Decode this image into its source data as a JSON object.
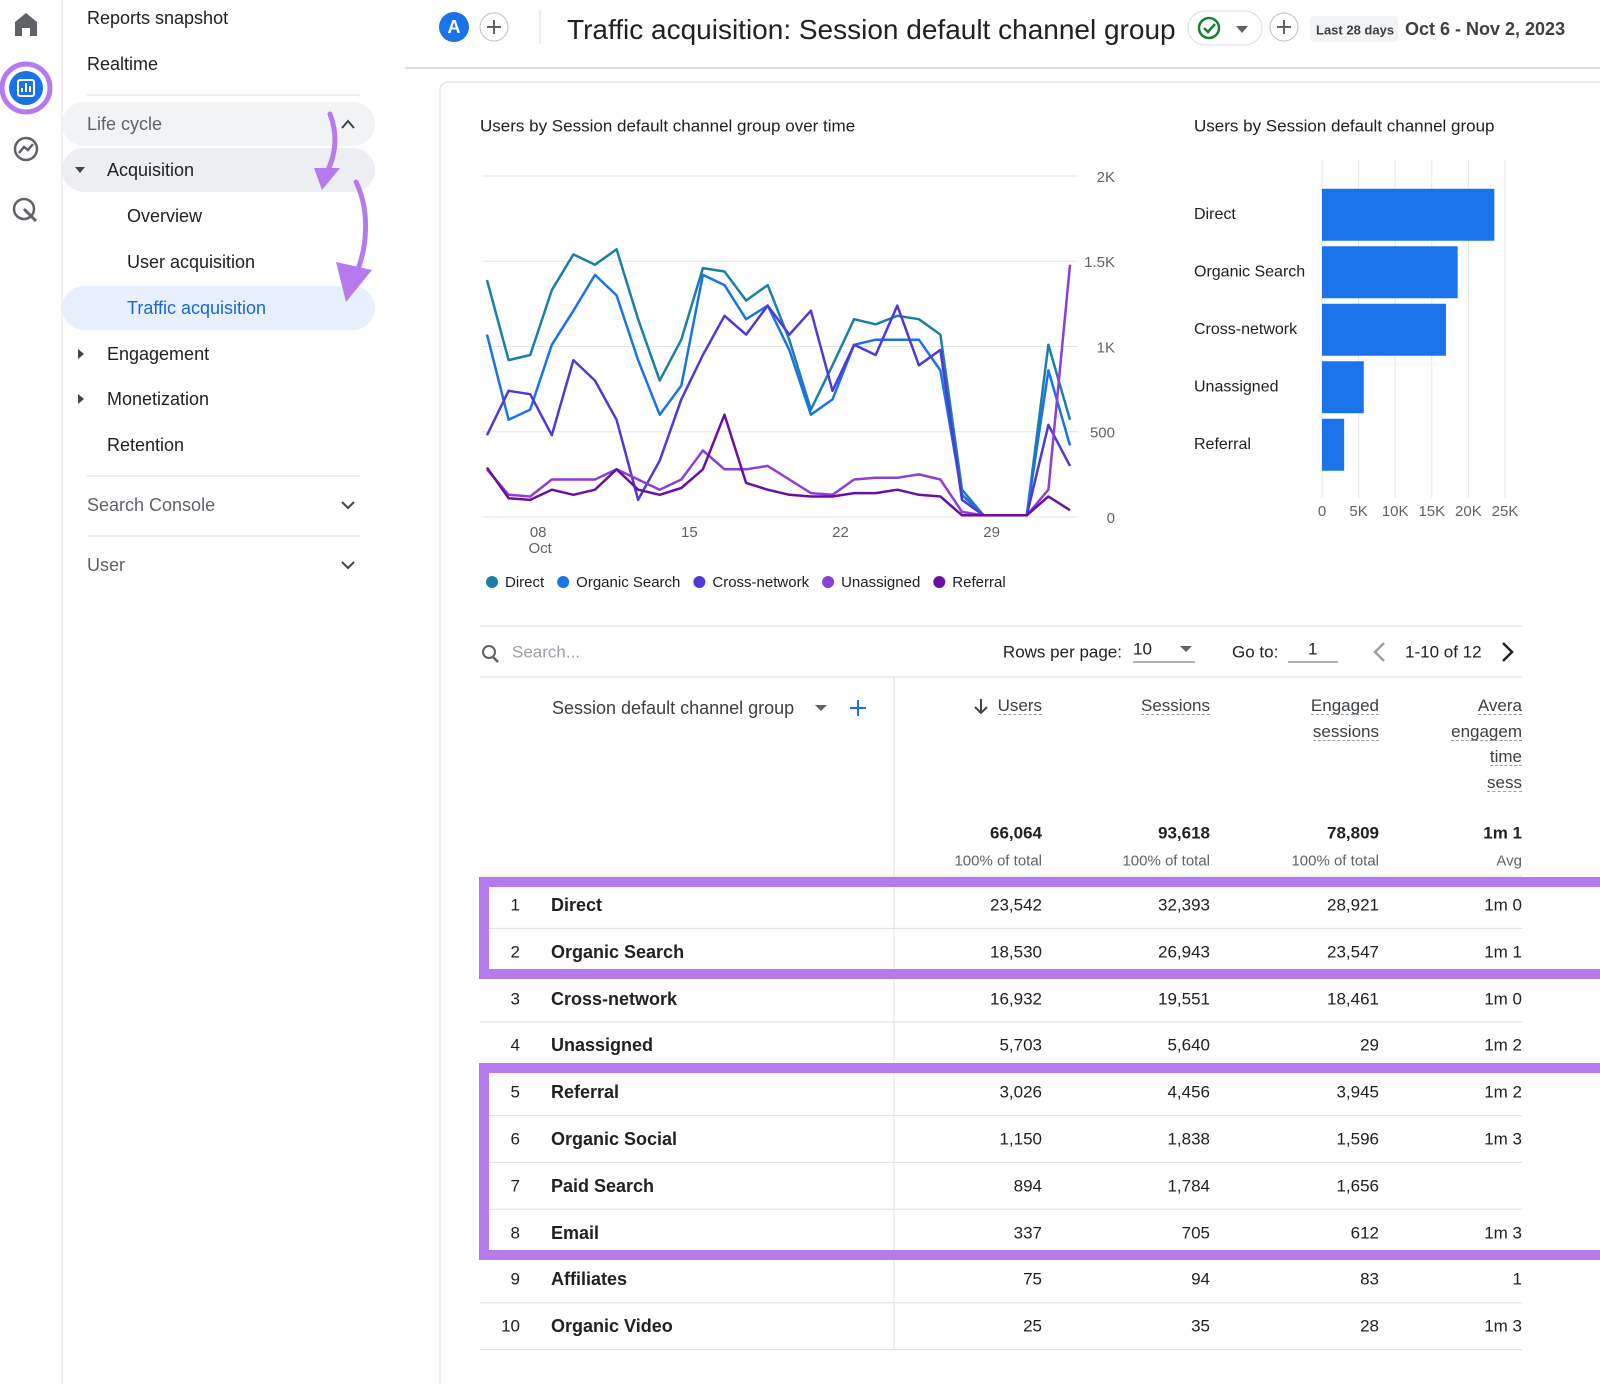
{
  "sidebar": {
    "items": [
      "Reports snapshot",
      "Realtime",
      "Life cycle",
      "Acquisition",
      "Overview",
      "User acquisition",
      "Traffic acquisition",
      "Engagement",
      "Monetization",
      "Retention",
      "Search Console",
      "User"
    ]
  },
  "header": {
    "avatar": "A",
    "title": "Traffic acquisition: Session default channel group",
    "date_range_label": "Last 28 days",
    "date_range": "Oct 6 - Nov 2, 2023"
  },
  "chart_data": [
    {
      "type": "line",
      "title": "Users by Session default channel group over time",
      "categories": [
        null,
        null,
        "08",
        null,
        null,
        null,
        null,
        null,
        null,
        "15",
        null,
        null,
        null,
        null,
        null,
        null,
        "22",
        null,
        null,
        null,
        null,
        null,
        null,
        "29",
        null,
        null,
        null,
        null
      ],
      "x_sublabel": "Oct",
      "ylim": [
        0,
        2000
      ],
      "yticks": [
        0,
        500,
        {
          "value": 1000,
          "label": "1K"
        },
        {
          "value": 1500,
          "label": "1.5K"
        },
        {
          "value": 2000,
          "label": "2K"
        }
      ],
      "grid": true,
      "series": [
        {
          "name": "Direct",
          "color": "#1b7fa6",
          "values": [
            1390,
            920,
            950,
            1330,
            1540,
            1480,
            1570,
            1160,
            800,
            1040,
            1460,
            1440,
            1270,
            1360,
            1040,
            630,
            890,
            1160,
            1130,
            1180,
            1160,
            1070,
            160,
            10,
            10,
            10,
            1010,
            570
          ]
        },
        {
          "name": "Organic Search",
          "color": "#1a73e8",
          "values": [
            1070,
            570,
            630,
            1010,
            1210,
            1420,
            1300,
            920,
            600,
            770,
            1420,
            1360,
            1160,
            1240,
            980,
            600,
            690,
            1010,
            1040,
            1040,
            1040,
            860,
            130,
            10,
            10,
            10,
            860,
            420
          ]
        },
        {
          "name": "Cross-network",
          "color": "#5039d6",
          "values": [
            480,
            740,
            720,
            480,
            920,
            800,
            570,
            100,
            330,
            690,
            950,
            1180,
            1070,
            1240,
            1070,
            1210,
            740,
            1010,
            950,
            1240,
            890,
            980,
            100,
            10,
            10,
            10,
            540,
            300
          ]
        },
        {
          "name": "Unassigned",
          "color": "#8e3ed8",
          "values": [
            280,
            130,
            120,
            220,
            220,
            220,
            280,
            220,
            160,
            220,
            390,
            280,
            280,
            300,
            220,
            140,
            130,
            220,
            230,
            230,
            250,
            220,
            30,
            10,
            10,
            10,
            160,
            1480
          ]
        },
        {
          "name": "Referral",
          "color": "#6b0fa0",
          "values": [
            290,
            110,
            100,
            160,
            130,
            160,
            280,
            160,
            130,
            170,
            280,
            600,
            200,
            160,
            130,
            120,
            120,
            140,
            140,
            160,
            130,
            120,
            10,
            10,
            10,
            10,
            120,
            40
          ]
        }
      ]
    },
    {
      "type": "bar",
      "orientation": "horizontal",
      "title": "Users by Session default channel group",
      "categories": [
        "Direct",
        "Organic Search",
        "Cross-network",
        "Unassigned",
        "Referral"
      ],
      "values": [
        23542,
        18530,
        16932,
        5703,
        3026
      ],
      "color": "#1a73e8",
      "xlim": [
        0,
        25000
      ],
      "xticks": [
        0,
        {
          "value": 5000,
          "label": "5K"
        },
        {
          "value": 10000,
          "label": "10K"
        },
        {
          "value": 15000,
          "label": "15K"
        },
        {
          "value": 20000,
          "label": "20K"
        },
        {
          "value": 25000,
          "label": "25K"
        }
      ],
      "grid": true
    }
  ],
  "table": {
    "search_placeholder": "Search...",
    "rows_per_page_label": "Rows per page:",
    "rows_per_page": "10",
    "go_to_label": "Go to:",
    "go_to": "1",
    "pagination": "1-10 of 12",
    "dimension": "Session default channel group",
    "columns": [
      [
        "Users"
      ],
      [
        "Sessions"
      ],
      [
        "Engaged",
        "sessions"
      ],
      [
        "Avera",
        "engagem",
        "time",
        "sess"
      ]
    ],
    "totals": [
      "66,064",
      "93,618",
      "78,809",
      "1m 1"
    ],
    "totals_sub": [
      "100% of total",
      "100% of total",
      "100% of total",
      "Avg"
    ],
    "rows": [
      [
        "1",
        "Direct",
        "23,542",
        "32,393",
        "28,921",
        "1m 0"
      ],
      [
        "2",
        "Organic Search",
        "18,530",
        "26,943",
        "23,547",
        "1m 1"
      ],
      [
        "3",
        "Cross-network",
        "16,932",
        "19,551",
        "18,461",
        "1m 0"
      ],
      [
        "4",
        "Unassigned",
        "5,703",
        "5,640",
        "29",
        "1m 2"
      ],
      [
        "5",
        "Referral",
        "3,026",
        "4,456",
        "3,945",
        "1m 2"
      ],
      [
        "6",
        "Organic Social",
        "1,150",
        "1,838",
        "1,596",
        "1m 3"
      ],
      [
        "7",
        "Paid Search",
        "894",
        "1,784",
        "1,656"
      ],
      [
        "8",
        "Email",
        "337",
        "705",
        "612",
        "1m 3"
      ],
      [
        "9",
        "Affiliates",
        "75",
        "94",
        "83",
        "1"
      ],
      [
        "10",
        "Organic Video",
        "25",
        "35",
        "28",
        "1m 3"
      ]
    ]
  }
}
